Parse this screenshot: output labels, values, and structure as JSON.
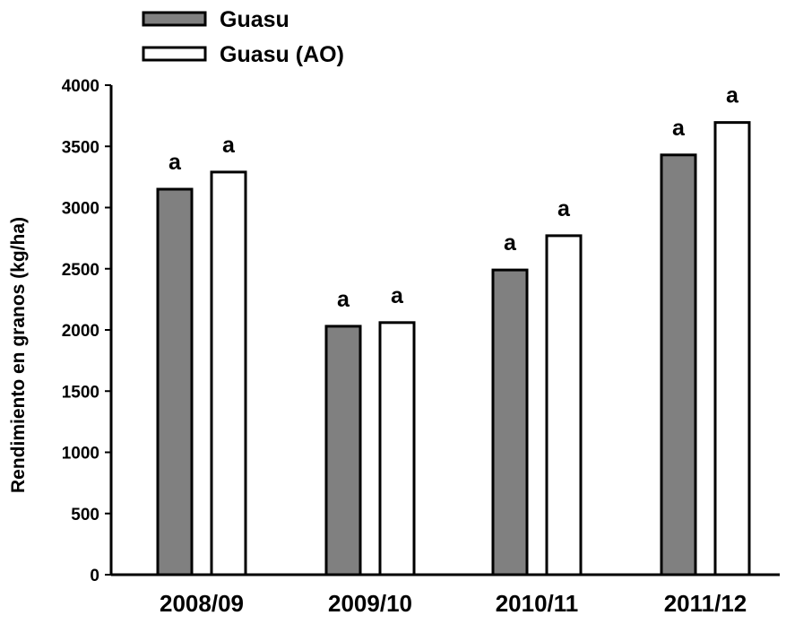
{
  "chart_data": {
    "type": "bar",
    "title": "",
    "xlabel": "",
    "ylabel": "Rendimiento en granos (kg/ha)",
    "ylim": [
      0,
      4000
    ],
    "yticks": [
      0,
      500,
      1000,
      1500,
      2000,
      2500,
      3000,
      3500,
      4000
    ],
    "categories": [
      "2008/09",
      "2009/10",
      "2010/11",
      "2011/12"
    ],
    "series": [
      {
        "name": "Guasu",
        "values": [
          3150,
          2030,
          2490,
          3430
        ],
        "labels": [
          "a",
          "a",
          "a",
          "a"
        ],
        "color": "#808080"
      },
      {
        "name": "Guasu (AO)",
        "values": [
          3290,
          2060,
          2770,
          3695
        ],
        "labels": [
          "a",
          "a",
          "a",
          "a"
        ],
        "color": "#ffffff"
      }
    ],
    "legend_position": "top-left",
    "grid": false
  }
}
